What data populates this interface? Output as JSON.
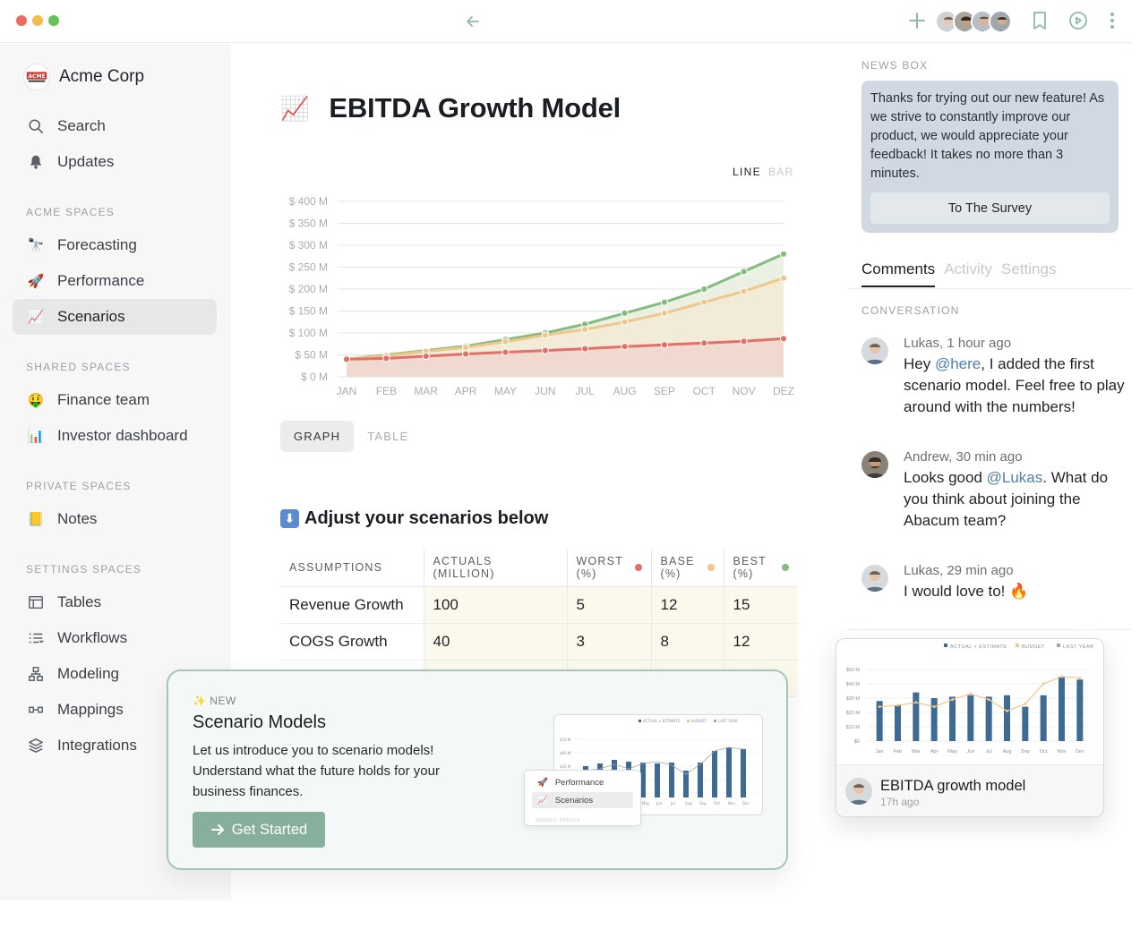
{
  "window": {
    "title": ""
  },
  "sidebar": {
    "brand": "Acme Corp",
    "top_items": [
      {
        "label": "Search",
        "icon": "search-icon"
      },
      {
        "label": "Updates",
        "icon": "bell-icon"
      }
    ],
    "sections": [
      {
        "title": "ACME SPACES",
        "items": [
          {
            "label": "Forecasting",
            "icon": "telescope-emoji"
          },
          {
            "label": "Performance",
            "icon": "rocket-emoji"
          },
          {
            "label": "Scenarios",
            "icon": "chart-increasing-emoji",
            "active": true
          }
        ]
      },
      {
        "title": "SHARED SPACES",
        "items": [
          {
            "label": "Finance team",
            "icon": "money-mouth-emoji"
          },
          {
            "label": "Investor dashboard",
            "icon": "bar-chart-emoji"
          }
        ]
      },
      {
        "title": "PRIVATE SPACES",
        "items": [
          {
            "label": "Notes",
            "icon": "notebook-emoji"
          }
        ]
      },
      {
        "title": "SETTINGS SPACES",
        "items": [
          {
            "label": "Tables",
            "icon": "table-icon"
          },
          {
            "label": "Workflows",
            "icon": "list-icon"
          },
          {
            "label": "Modeling",
            "icon": "hierarchy-icon"
          },
          {
            "label": "Mappings",
            "icon": "link-icon"
          },
          {
            "label": "Integrations",
            "icon": "layers-icon"
          }
        ]
      }
    ]
  },
  "main": {
    "title": "EBITDA Growth Model",
    "title_emoji": "📈",
    "chart_toggle": {
      "line": "LINE",
      "bar": "BAR",
      "selected": "line"
    },
    "view_tabs": {
      "graph": "GRAPH",
      "table": "TABLE",
      "selected": "graph"
    },
    "adjust_title": "Adjust your scenarios below",
    "adjust_icon": "⬇",
    "table": {
      "headers": {
        "assumptions": "ASSUMPTIONS",
        "actuals": "ACTUALS (MILLION)",
        "worst_1": "WORST",
        "worst_2": "(%)",
        "base_1": "BASE",
        "base_2": "(%)",
        "best_1": "BEST",
        "best_2": "(%)"
      },
      "rows": [
        {
          "name": "Revenue Growth",
          "actuals": "100",
          "worst": "5",
          "base": "12",
          "best": "15"
        },
        {
          "name": "COGS Growth",
          "actuals": "40",
          "worst": "3",
          "base": "8",
          "best": "12"
        }
      ]
    }
  },
  "chart_data": [
    {
      "type": "area",
      "title": "",
      "categories": [
        "JAN",
        "FEB",
        "MAR",
        "APR",
        "MAY",
        "JUN",
        "JUL",
        "AUG",
        "SEP",
        "OCT",
        "NOV",
        "DEZ"
      ],
      "y_ticks": [
        "$ 0 M",
        "$ 50 M",
        "$ 100 M",
        "$ 150 M",
        "$ 200 M",
        "$ 250 M",
        "$ 300 M",
        "$ 350 M",
        "$ 400 M"
      ],
      "ylim": [
        0,
        400
      ],
      "grid": true,
      "series": [
        {
          "values": [
            40,
            50,
            60,
            70,
            85,
            100,
            120,
            145,
            170,
            200,
            240,
            280
          ],
          "color": "#86bb7f",
          "fill": "#e9efe0"
        },
        {
          "values": [
            40,
            48,
            58,
            67,
            80,
            95,
            108,
            125,
            145,
            170,
            195,
            225
          ],
          "color": "#efc78c",
          "fill": "#f1ead7"
        },
        {
          "values": [
            40,
            42,
            47,
            52,
            56,
            60,
            64,
            69,
            73,
            77,
            81,
            87
          ],
          "color": "#e2706a",
          "fill": "#efd9cf"
        }
      ]
    }
  ],
  "right": {
    "news_label": "NEWS BOX",
    "news_text": "Thanks for trying out our new feature! As we strive to constantly improve our product, we would appreciate your feedback! It takes no more than 3 minutes.",
    "news_button": "To The Survey",
    "tabs": [
      "Comments",
      "Activity",
      "Settings"
    ],
    "conversation_label": "CONVERSATION",
    "comments": [
      {
        "author": "Lukas, 1 hour ago",
        "pre": "Hey ",
        "mention": "@here",
        "post": ", I added the first scenario model. Feel free to play around with the numbers!"
      },
      {
        "author": "Andrew, 30 min ago",
        "pre": "Looks good ",
        "mention": "@Lukas",
        "post": ". What do you think about joining the Abacum team?"
      },
      {
        "author": "Lukas, 29 min ago",
        "pre": "I would love to! 🔥",
        "mention": "",
        "post": ""
      }
    ]
  },
  "promo": {
    "tag": "✨ NEW",
    "title": "Scenario Models",
    "description": "Let us introduce you to scenario models! Understand what the future holds for your business finances.",
    "button": "Get Started",
    "mini_nav": {
      "item1": "Performance",
      "item2": "Scenarios",
      "item3": "SHARED SPACES"
    }
  },
  "ebitda_card": {
    "title": "EBITDA growth model",
    "subtitle": "17h ago",
    "legend": [
      "ACTUAL + ESTIMATE",
      "BUDGET",
      "LAST YEAR"
    ],
    "y_ticks": [
      "$0",
      "$10 M",
      "$20 M",
      "$30 M",
      "$40 M",
      "$50 M"
    ],
    "months": [
      "Jan",
      "Feb",
      "Mar",
      "Apr",
      "May",
      "Jun",
      "Jul",
      "Aug",
      "Sep",
      "Oct",
      "Nov",
      "Dec"
    ],
    "bars": [
      28,
      25,
      34,
      30,
      31,
      32,
      31,
      32,
      24,
      32,
      45,
      43
    ],
    "budget": [
      24,
      25,
      27,
      24,
      29,
      33,
      29,
      21,
      26,
      40,
      45,
      44
    ]
  },
  "colors": {
    "accent_green": "#86b09c",
    "news_bg": "#d0d9e1",
    "bar_blue": "#3f6a91"
  }
}
